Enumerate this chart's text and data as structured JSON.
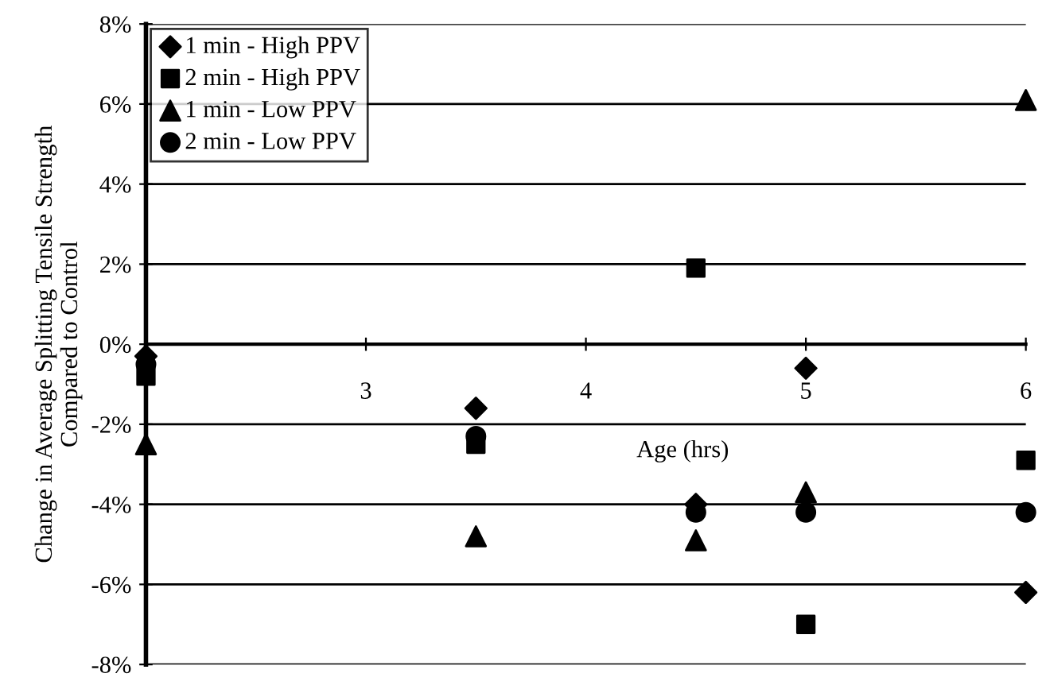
{
  "chart_data": {
    "type": "scatter",
    "xlabel": "Age (hrs)",
    "ylabel": "Change in Average Splitting Tensile Strength\nCompared to Control",
    "xlim": [
      2,
      6
    ],
    "xticks": [
      3,
      4,
      5,
      6
    ],
    "ylim": [
      -8,
      8
    ],
    "yticks": [
      {
        "value": -8,
        "label": "-8%"
      },
      {
        "value": -6,
        "label": "-6%"
      },
      {
        "value": -4,
        "label": "-4%"
      },
      {
        "value": -2,
        "label": "-2%"
      },
      {
        "value": 0,
        "label": "0%"
      },
      {
        "value": 2,
        "label": "2%"
      },
      {
        "value": 4,
        "label": "4%"
      },
      {
        "value": 6,
        "label": "6%"
      },
      {
        "value": 8,
        "label": "8%"
      }
    ],
    "grid": "y",
    "legend": "top left",
    "series": [
      {
        "name": "1 min - High PPV",
        "color": "#000000",
        "marker": "diamond",
        "x": [
          2,
          3.5,
          4.5,
          5,
          6
        ],
        "values": [
          -0.3,
          -1.6,
          -4.0,
          -0.6,
          -6.2
        ]
      },
      {
        "name": "2 min - High PPV",
        "color": "#000000",
        "marker": "square",
        "x": [
          2,
          3.5,
          4.5,
          5,
          6
        ],
        "values": [
          -0.8,
          -2.5,
          1.9,
          -7.0,
          -2.9
        ]
      },
      {
        "name": "1 min - Low PPV",
        "color": "#000000",
        "marker": "triangle",
        "x": [
          2,
          3.5,
          4.5,
          5,
          6
        ],
        "values": [
          -2.5,
          -4.8,
          -4.9,
          -3.7,
          6.1
        ]
      },
      {
        "name": "2 min - Low PPV",
        "color": "#000000",
        "marker": "circle",
        "x": [
          2,
          3.5,
          4.5,
          5,
          6
        ],
        "values": [
          -0.5,
          -2.3,
          -4.2,
          -4.2,
          -4.2
        ]
      }
    ]
  }
}
